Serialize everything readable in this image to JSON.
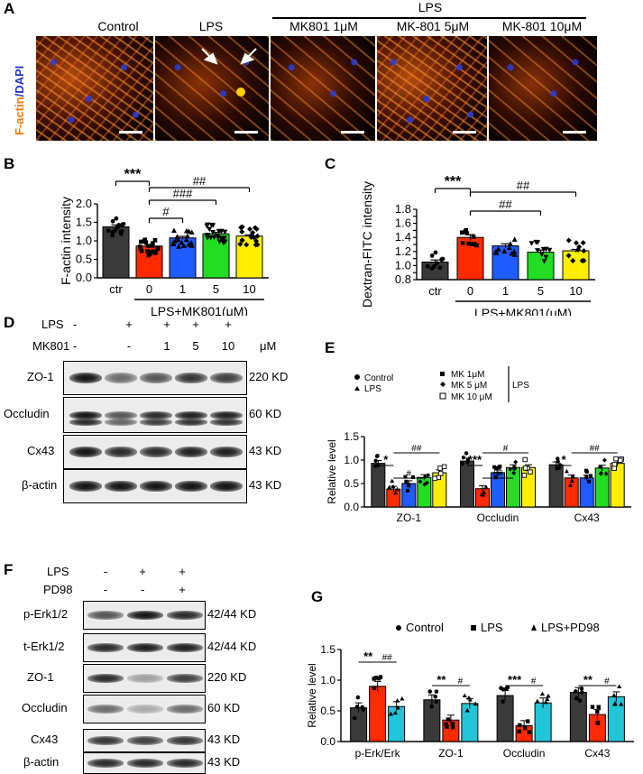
{
  "panelA": {
    "label": "A",
    "lps_group": "LPS",
    "side_label_factin": "F-actin",
    "side_label_dapi": "/DAPI",
    "columns": [
      "Control",
      "LPS",
      "MK801 1μM",
      "MK-801 5μM",
      "MK-801 10μM"
    ]
  },
  "panelB": {
    "label": "B",
    "ylabel": "F-actin intensity",
    "xgroup": "LPS+MK801(μM)",
    "sig": [
      "***",
      "#",
      "###",
      "##"
    ]
  },
  "panelC": {
    "label": "C",
    "ylabel": "Dextran-FITC intensity",
    "xgroup": "LPS+MK801(μM)",
    "sig": [
      "***",
      "##",
      "##"
    ]
  },
  "panelD": {
    "label": "D",
    "row_lps": "LPS",
    "row_mk": "MK801",
    "lps_vals": [
      "-",
      "+",
      "+",
      "+",
      "+"
    ],
    "mk_vals": [
      "-",
      "-",
      "1",
      "5",
      "10"
    ],
    "unit": "μM",
    "blots": [
      {
        "name": "ZO-1",
        "kd": "220 KD"
      },
      {
        "name": "Occludin",
        "kd": "60 KD"
      },
      {
        "name": "Cx43",
        "kd": "43 KD"
      },
      {
        "name": "β-actin",
        "kd": "43 KD"
      }
    ]
  },
  "panelE": {
    "label": "E",
    "ylabel": "Relative level",
    "legend_control": "Control",
    "legend_lps": "LPS",
    "legend_mk1": "MK 1μM",
    "legend_mk5": "MK 5 μM",
    "legend_mk10": "MK 10 μM",
    "legend_lps_bracket": "LPS",
    "groups": [
      "ZO-1",
      "Occludin",
      "Cx43"
    ],
    "sig": [
      "*",
      "##",
      "#",
      "***",
      "##",
      "#",
      "*",
      "##"
    ]
  },
  "panelF": {
    "label": "F",
    "row_lps": "LPS",
    "row_pd": "PD98",
    "lps_vals": [
      "-",
      "+",
      "+"
    ],
    "pd_vals": [
      "-",
      "-",
      "+"
    ],
    "blots": [
      {
        "name": "p-Erk1/2",
        "kd": "42/44 KD"
      },
      {
        "name": "t-Erk1/2",
        "kd": "42/44 KD"
      },
      {
        "name": "ZO-1",
        "kd": "220 KD"
      },
      {
        "name": "Occludin",
        "kd": "60 KD"
      },
      {
        "name": "Cx43",
        "kd": "43 KD"
      },
      {
        "name": "β-actin",
        "kd": "43 KD"
      }
    ]
  },
  "panelG": {
    "label": "G",
    "ylabel": "Relative level",
    "legend": [
      "Control",
      "LPS",
      "LPS+PD98"
    ],
    "groups": [
      "p-Erk/Erk",
      "ZO-1",
      "Occludin",
      "Cx43"
    ],
    "sig": [
      "**",
      "##",
      "**",
      "#",
      "***",
      "#",
      "**",
      "#"
    ]
  },
  "colors": {
    "ctr": "#3a3a3a",
    "lps": "#ff2a00",
    "mk1": "#1f5bff",
    "mk5": "#22dd22",
    "mk10": "#ffee00",
    "pd": "#22c5d8"
  },
  "chart_data": [
    {
      "type": "bar",
      "categories": [
        "ctr",
        "0",
        "1",
        "5",
        "10"
      ],
      "values": [
        1.38,
        0.86,
        1.08,
        1.19,
        1.13
      ],
      "errors": [
        0.05,
        0.04,
        0.04,
        0.04,
        0.03
      ],
      "ylabel": "F-actin intensity",
      "ylim": [
        0.0,
        2.0
      ],
      "yticks": [
        0.0,
        0.5,
        1.0,
        1.5,
        2.0
      ]
    },
    {
      "type": "bar",
      "categories": [
        "ctr",
        "0",
        "1",
        "5",
        "10"
      ],
      "values": [
        1.05,
        1.4,
        1.28,
        1.19,
        1.21
      ],
      "errors": [
        0.03,
        0.04,
        0.03,
        0.03,
        0.02
      ],
      "ylabel": "Dextran-FITC intensity",
      "ylim": [
        0.8,
        1.8
      ],
      "yticks": [
        0.8,
        0.9,
        1.0,
        1.1,
        1.2,
        1.3,
        1.4,
        1.5,
        1.6,
        1.7,
        1.8
      ],
      "tick_labels": [
        "0.8",
        "",
        "1.0",
        "",
        "1.2",
        "",
        "1.4",
        "",
        "1.6",
        "",
        "1.8"
      ]
    },
    {
      "type": "bar",
      "categories": [
        "ZO-1",
        "Occludin",
        "Cx43"
      ],
      "series": [
        {
          "name": "Control",
          "values": [
            0.93,
            0.98,
            0.9
          ]
        },
        {
          "name": "LPS",
          "values": [
            0.38,
            0.39,
            0.62
          ]
        },
        {
          "name": "MK 1μM",
          "values": [
            0.5,
            0.73,
            0.62
          ]
        },
        {
          "name": "MK 5 μM",
          "values": [
            0.63,
            0.84,
            0.83
          ]
        },
        {
          "name": "MK 10 μM",
          "values": [
            0.73,
            0.84,
            0.93
          ]
        }
      ],
      "ylabel": "Relative level",
      "ylim": [
        0.0,
        1.5
      ],
      "yticks": [
        0.0,
        0.5,
        1.0,
        1.5
      ]
    },
    {
      "type": "bar",
      "categories": [
        "p-Erk/Erk",
        "ZO-1",
        "Occludin",
        "Cx43"
      ],
      "series": [
        {
          "name": "Control",
          "values": [
            0.55,
            0.68,
            0.75,
            0.8
          ]
        },
        {
          "name": "LPS",
          "values": [
            0.9,
            0.35,
            0.26,
            0.44
          ]
        },
        {
          "name": "LPS+PD98",
          "values": [
            0.57,
            0.62,
            0.63,
            0.73
          ]
        }
      ],
      "ylabel": "Relative level",
      "ylim": [
        0.0,
        1.5
      ],
      "yticks": [
        0.0,
        0.5,
        1.0,
        1.5
      ]
    }
  ]
}
